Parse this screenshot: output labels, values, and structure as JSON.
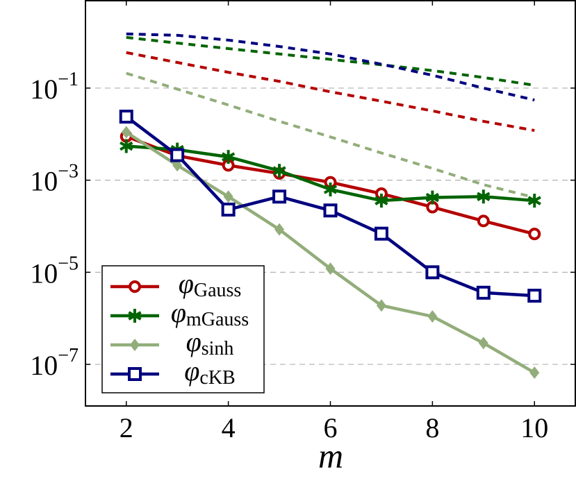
{
  "chart_data": {
    "type": "line",
    "x_label": "m",
    "x": [
      2,
      3,
      4,
      5,
      6,
      7,
      8,
      9,
      10
    ],
    "xlim": [
      1.2,
      10.8
    ],
    "xticks": [
      2,
      4,
      6,
      8,
      10
    ],
    "ylim": [
      1.25e-08,
      7.9
    ],
    "log_y": true,
    "grid": true,
    "legend": "lower left",
    "yticks": [
      {
        "value": 1e-07,
        "label": "10−7"
      },
      {
        "value": 1e-05,
        "label": "10−5"
      },
      {
        "value": 0.001,
        "label": "10−3"
      },
      {
        "value": 0.1,
        "label": "10−1"
      }
    ],
    "series": [
      {
        "color": "#b40000",
        "style": "dashed",
        "values": [
          0.59,
          0.36,
          0.22,
          0.14,
          0.083,
          0.052,
          0.032,
          0.019,
          0.012
        ]
      },
      {
        "color": "#006400",
        "style": "dashed",
        "values": [
          1.26,
          0.95,
          0.72,
          0.55,
          0.42,
          0.32,
          0.24,
          0.17,
          0.115
        ]
      },
      {
        "color": "#00007f",
        "style": "dashed",
        "values": [
          1.5,
          1.4,
          1.1,
          0.8,
          0.55,
          0.33,
          0.19,
          0.1,
          0.055
        ]
      },
      {
        "color": "#92ad7a",
        "style": "dashed",
        "values": [
          0.21,
          0.095,
          0.043,
          0.019,
          0.0087,
          0.0039,
          0.0018,
          0.0008,
          0.00042
        ]
      },
      {
        "name": "φGauss",
        "color": "#b40000",
        "marker": "circle",
        "values": [
          0.0089,
          0.0034,
          0.0021,
          0.0014,
          0.0009,
          0.00051,
          0.00026,
          0.00013,
          6.8e-05
        ]
      },
      {
        "name": "φmGauss",
        "color": "#006400",
        "marker": "star",
        "values": [
          0.0055,
          0.0046,
          0.0032,
          0.0016,
          0.00063,
          0.00036,
          0.00042,
          0.00044,
          0.00036
        ]
      },
      {
        "name": "φsinh",
        "color": "#92ad7a",
        "marker": "diamond",
        "values": [
          0.011,
          0.0021,
          0.00044,
          8.5e-05,
          1.2e-05,
          1.9e-06,
          1.1e-06,
          2.9e-07,
          6.6e-08
        ]
      },
      {
        "name": "φcKB",
        "color": "#00007f",
        "marker": "square",
        "values": [
          0.024,
          0.0035,
          0.00023,
          0.00044,
          0.00022,
          6.9e-05,
          1e-05,
          3.6e-06,
          3.1e-06
        ]
      }
    ]
  }
}
